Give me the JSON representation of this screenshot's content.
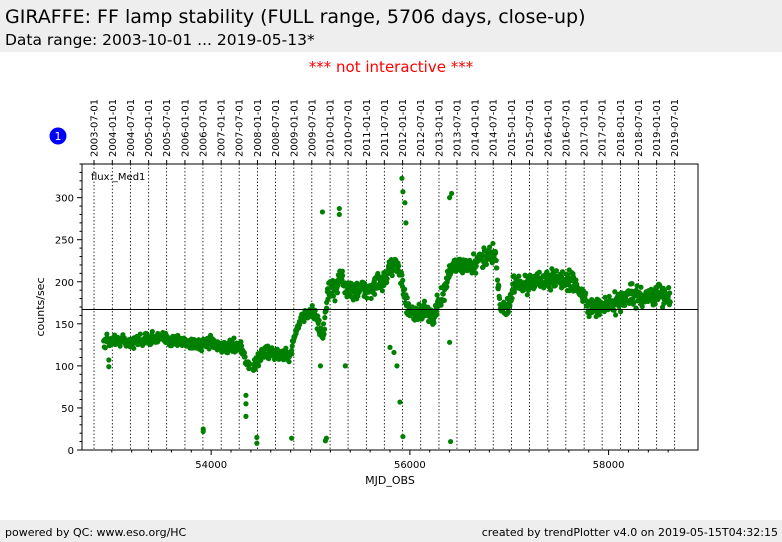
{
  "header": {
    "title": "GIRAFFE: FF lamp stability (FULL range, 5706 days, close-up)",
    "subtitle": "Data range: 2003-10-01 ... 2019-05-13*"
  },
  "notice": "*** not interactive ***",
  "footer": {
    "left": "powered by QC: www.eso.org/HC",
    "right": "created by trendPlotter v4.0 on 2019-05-15T04:32:15"
  },
  "colors": {
    "header_bg": "#eeeeee",
    "notice": "#ff0000",
    "points": "#008000",
    "marker": "#0000ff"
  },
  "chart_data": {
    "type": "scatter",
    "xlabel": "MJD_OBS",
    "ylabel": "counts/sec",
    "series_label": "flux:_Med1",
    "xlim": [
      52700,
      58900
    ],
    "ylim": [
      0,
      340
    ],
    "xticks": [
      54000,
      56000,
      58000
    ],
    "yticks": [
      0,
      50,
      100,
      150,
      200,
      250,
      300
    ],
    "reference_line": 167,
    "marker_label": "1",
    "grid": "vertical dotted lines at date ticks",
    "top_axis_dates": [
      "2003-01-01",
      "2003-07-01",
      "2004-01-01",
      "2004-07-01",
      "2005-01-01",
      "2005-07-01",
      "2006-01-01",
      "2006-07-01",
      "2007-01-01",
      "2007-07-01",
      "2008-01-01",
      "2008-07-01",
      "2009-01-01",
      "2009-07-01",
      "2010-01-01",
      "2010-07-01",
      "2011-01-01",
      "2011-07-01",
      "2012-01-01",
      "2012-07-01",
      "2013-01-01",
      "2013-07-01",
      "2014-01-01",
      "2014-07-01",
      "2015-01-01",
      "2015-07-01",
      "2016-01-01",
      "2016-07-01",
      "2017-01-01",
      "2017-07-01",
      "2018-01-01",
      "2018-07-01",
      "2019-01-01",
      "2019-07-01"
    ],
    "top_axis_mjd": [
      52640,
      52821,
      53005,
      53187,
      53371,
      53552,
      53736,
      53917,
      54101,
      54282,
      54466,
      54648,
      54832,
      55013,
      55197,
      55378,
      55562,
      55743,
      55927,
      56109,
      56293,
      56474,
      56658,
      56839,
      57023,
      57204,
      57388,
      57570,
      57754,
      57935,
      58119,
      58300,
      58484,
      58665
    ],
    "trend": [
      [
        52920,
        127
      ],
      [
        53000,
        130
      ],
      [
        53100,
        130
      ],
      [
        53200,
        128
      ],
      [
        53300,
        131
      ],
      [
        53400,
        133
      ],
      [
        53500,
        133
      ],
      [
        53600,
        130
      ],
      [
        53700,
        130
      ],
      [
        53800,
        127
      ],
      [
        53900,
        125
      ],
      [
        54000,
        128
      ],
      [
        54100,
        122
      ],
      [
        54200,
        124
      ],
      [
        54300,
        125
      ],
      [
        54360,
        101
      ],
      [
        54440,
        100
      ],
      [
        54520,
        118
      ],
      [
        54600,
        117
      ],
      [
        54700,
        112
      ],
      [
        54790,
        112
      ],
      [
        54850,
        140
      ],
      [
        54920,
        160
      ],
      [
        54980,
        163
      ],
      [
        55050,
        163
      ],
      [
        55120,
        128
      ],
      [
        55180,
        195
      ],
      [
        55250,
        185
      ],
      [
        55300,
        210
      ],
      [
        55360,
        190
      ],
      [
        55450,
        190
      ],
      [
        55550,
        190
      ],
      [
        55650,
        195
      ],
      [
        55740,
        200
      ],
      [
        55800,
        215
      ],
      [
        55860,
        228
      ],
      [
        55920,
        200
      ],
      [
        55980,
        165
      ],
      [
        56060,
        160
      ],
      [
        56150,
        170
      ],
      [
        56220,
        155
      ],
      [
        56300,
        175
      ],
      [
        56350,
        190
      ],
      [
        56420,
        220
      ],
      [
        56500,
        220
      ],
      [
        56600,
        215
      ],
      [
        56700,
        225
      ],
      [
        56800,
        235
      ],
      [
        56860,
        232
      ],
      [
        56920,
        165
      ],
      [
        57000,
        172
      ],
      [
        57050,
        200
      ],
      [
        57150,
        195
      ],
      [
        57250,
        200
      ],
      [
        57350,
        200
      ],
      [
        57450,
        205
      ],
      [
        57550,
        200
      ],
      [
        57650,
        200
      ],
      [
        57720,
        188
      ],
      [
        57800,
        168
      ],
      [
        57880,
        168
      ],
      [
        57960,
        172
      ],
      [
        58050,
        175
      ],
      [
        58150,
        180
      ],
      [
        58250,
        183
      ],
      [
        58350,
        182
      ],
      [
        58450,
        185
      ],
      [
        58550,
        183
      ],
      [
        58620,
        180
      ]
    ],
    "outliers": [
      [
        52970,
        107
      ],
      [
        52970,
        99
      ],
      [
        53920,
        25
      ],
      [
        53920,
        22
      ],
      [
        54350,
        65
      ],
      [
        54350,
        55
      ],
      [
        54350,
        40
      ],
      [
        54460,
        15
      ],
      [
        54460,
        8
      ],
      [
        54810,
        14
      ],
      [
        55160,
        14
      ],
      [
        55150,
        11
      ],
      [
        55100,
        100
      ],
      [
        55290,
        280
      ],
      [
        55290,
        287
      ],
      [
        55120,
        283
      ],
      [
        55350,
        100
      ],
      [
        55900,
        57
      ],
      [
        55930,
        16
      ],
      [
        55920,
        323
      ],
      [
        55930,
        307
      ],
      [
        55950,
        294
      ],
      [
        55960,
        270
      ],
      [
        56400,
        300
      ],
      [
        56420,
        305
      ],
      [
        56410,
        10
      ],
      [
        56400,
        128
      ],
      [
        55800,
        122
      ],
      [
        55840,
        116
      ],
      [
        55870,
        100
      ]
    ]
  }
}
